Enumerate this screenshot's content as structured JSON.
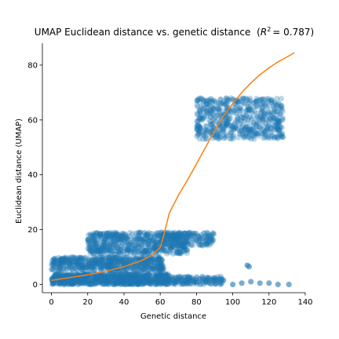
{
  "chart_data": {
    "type": "scatter",
    "title": "UMAP Euclidean distance vs. genetic distance",
    "title_r2_label": "R",
    "title_r2_exponent": "2",
    "title_r2_value": "= 0.787)",
    "title_prefix_paren": "(",
    "xlabel": "Genetic distance",
    "ylabel": "Euclidean distance (UMAP)",
    "xlim": [
      -5,
      140
    ],
    "ylim": [
      -3,
      88
    ],
    "xticks": [
      0,
      20,
      40,
      60,
      80,
      100,
      120,
      140
    ],
    "yticks": [
      0,
      20,
      40,
      60,
      80
    ],
    "grid": false,
    "colors": {
      "points": "#1f77b4",
      "fit_line": "#ff7f0e"
    },
    "point_alpha": 0.3,
    "clusters": [
      {
        "x_range": [
          0,
          65
        ],
        "y_range": [
          0,
          4
        ],
        "density": "very-high"
      },
      {
        "x_range": [
          0,
          62
        ],
        "y_range": [
          5,
          10
        ],
        "density": "high"
      },
      {
        "x_range": [
          20,
          75
        ],
        "y_range": [
          11,
          19
        ],
        "density": "high"
      },
      {
        "x_range": [
          62,
          95
        ],
        "y_range": [
          0,
          3
        ],
        "density": "medium"
      },
      {
        "x_range": [
          60,
          90
        ],
        "y_range": [
          14,
          19
        ],
        "density": "medium"
      },
      {
        "x_range": [
          80,
          128
        ],
        "y_range": [
          53,
          68
        ],
        "density": "high"
      }
    ],
    "outliers": [
      {
        "x": 100,
        "y": 0
      },
      {
        "x": 105,
        "y": 0.5
      },
      {
        "x": 108,
        "y": 7
      },
      {
        "x": 109,
        "y": 6.5
      },
      {
        "x": 110,
        "y": 1
      },
      {
        "x": 115,
        "y": 0.5
      },
      {
        "x": 120,
        "y": 0.5
      },
      {
        "x": 125,
        "y": 0
      },
      {
        "x": 131,
        "y": 0
      }
    ],
    "fit_line": {
      "x": [
        0,
        10,
        20,
        30,
        40,
        50,
        55,
        60,
        62,
        65,
        70,
        75,
        80,
        85,
        90,
        95,
        100,
        105,
        110,
        115,
        120,
        125,
        130,
        134
      ],
      "y": [
        1.5,
        2.5,
        3.5,
        4.8,
        6.5,
        8.8,
        10.5,
        13.5,
        18,
        26,
        32.5,
        38,
        44,
        50,
        56,
        61.5,
        66,
        70,
        73.5,
        76.5,
        79,
        81.2,
        83,
        84.5
      ]
    }
  }
}
